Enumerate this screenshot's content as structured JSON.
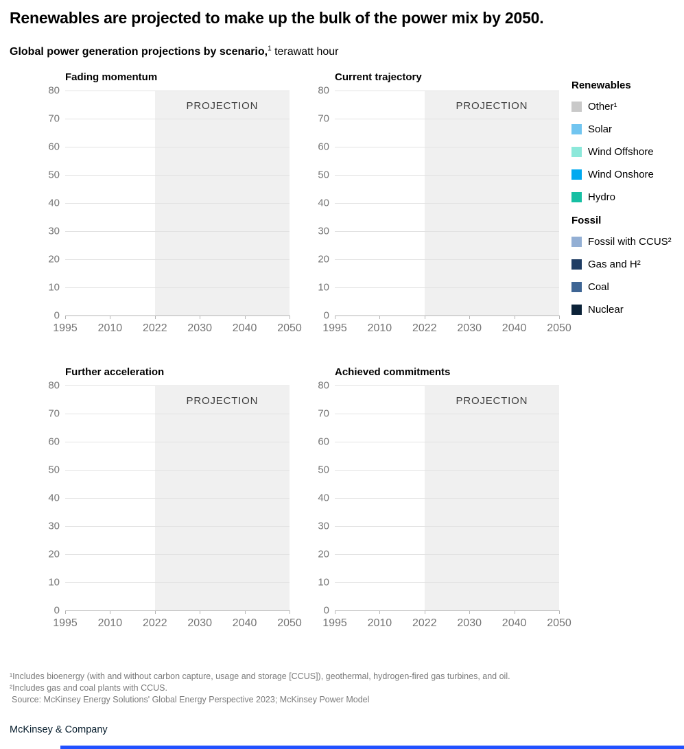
{
  "header": {
    "title": "Renewables are projected to make up the bulk of the power mix by 2050.",
    "subtitle_bold": "Global power generation projections by scenario,",
    "subtitle_sup": "1",
    "subtitle_unit": " terawatt hour"
  },
  "chart_data": [
    {
      "type": "area",
      "title": "Fading momentum",
      "xlabel": "",
      "ylabel": "terawatt hour",
      "x_tick_labels": [
        "1995",
        "2010",
        "2022",
        "2030",
        "2040",
        "2050"
      ],
      "y_tick_labels": [
        "0",
        "10",
        "20",
        "30",
        "40",
        "50",
        "60",
        "70",
        "80"
      ],
      "ylim": [
        0,
        80
      ],
      "grid": "horizontal",
      "projection_label": "PROJECTION",
      "projection_from": "2022",
      "series": []
    },
    {
      "type": "area",
      "title": "Current trajectory",
      "xlabel": "",
      "ylabel": "terawatt hour",
      "x_tick_labels": [
        "1995",
        "2010",
        "2022",
        "2030",
        "2040",
        "2050"
      ],
      "y_tick_labels": [
        "0",
        "10",
        "20",
        "30",
        "40",
        "50",
        "60",
        "70",
        "80"
      ],
      "ylim": [
        0,
        80
      ],
      "grid": "horizontal",
      "projection_label": "PROJECTION",
      "projection_from": "2022",
      "series": []
    },
    {
      "type": "area",
      "title": "Further acceleration",
      "xlabel": "",
      "ylabel": "terawatt hour",
      "x_tick_labels": [
        "1995",
        "2010",
        "2022",
        "2030",
        "2040",
        "2050"
      ],
      "y_tick_labels": [
        "0",
        "10",
        "20",
        "30",
        "40",
        "50",
        "60",
        "70",
        "80"
      ],
      "ylim": [
        0,
        80
      ],
      "grid": "horizontal",
      "projection_label": "PROJECTION",
      "projection_from": "2022",
      "series": []
    },
    {
      "type": "area",
      "title": "Achieved commitments",
      "xlabel": "",
      "ylabel": "terawatt hour",
      "x_tick_labels": [
        "1995",
        "2010",
        "2022",
        "2030",
        "2040",
        "2050"
      ],
      "y_tick_labels": [
        "0",
        "10",
        "20",
        "30",
        "40",
        "50",
        "60",
        "70",
        "80"
      ],
      "ylim": [
        0,
        80
      ],
      "grid": "horizontal",
      "projection_label": "PROJECTION",
      "projection_from": "2022",
      "series": []
    }
  ],
  "legend": {
    "groups": [
      {
        "title": "Renewables",
        "items": [
          {
            "label": "Other¹",
            "color": "#c9c9c9"
          },
          {
            "label": "Solar",
            "color": "#71c5f0"
          },
          {
            "label": "Wind Offshore",
            "color": "#8ce8da"
          },
          {
            "label": "Wind Onshore",
            "color": "#00a9f0"
          },
          {
            "label": "Hydro",
            "color": "#17bfa3"
          }
        ]
      },
      {
        "title": "Fossil",
        "items": [
          {
            "label": "Fossil with CCUS²",
            "color": "#93afd4"
          },
          {
            "label": "Gas and H²",
            "color": "#1f3d64"
          },
          {
            "label": "Coal",
            "color": "#3e6594"
          },
          {
            "label": "Nuclear",
            "color": "#0b2238"
          }
        ]
      }
    ]
  },
  "footnotes": {
    "lines": [
      "¹Includes bioenergy (with and without carbon capture, usage and storage [CCUS]), geothermal, hydrogen-fired gas turbines, and oil.",
      "²Includes gas and coal plants with CCUS.",
      "Source: McKinsey Energy Solutions' Global Energy Perspective 2023; McKinsey Power Model"
    ]
  },
  "footer": {
    "brand": "McKinsey & Company"
  },
  "colors": {
    "projection_bg": "#f0f0f0",
    "gridline": "#e2e2e2",
    "axis_line": "#b3b3b3",
    "tick_text": "#757575",
    "accent_bar": "#2251ff"
  }
}
